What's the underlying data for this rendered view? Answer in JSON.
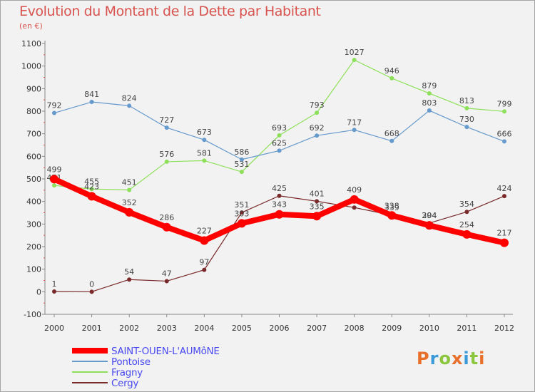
{
  "title": "Evolution du Montant de la Dette par Habitant",
  "unit": "(en €)",
  "logo": {
    "text": "Proxiti",
    "colors": [
      "#e8702a",
      "#3a9ad9",
      "#8cc63f",
      "#e8702a",
      "#3a9ad9",
      "#8cc63f",
      "#e8702a"
    ]
  },
  "chart_data": {
    "type": "line",
    "title": "Evolution du Montant de la Dette par Habitant",
    "ylabel": "(en €)",
    "xlabel": "",
    "categories": [
      "2000",
      "2001",
      "2002",
      "2003",
      "2004",
      "2005",
      "2006",
      "2007",
      "2008",
      "2009",
      "2010",
      "2011",
      "2012"
    ],
    "yticks": [
      -100,
      0,
      100,
      200,
      300,
      400,
      500,
      600,
      700,
      800,
      900,
      1000,
      1100
    ],
    "ylim": [
      -100,
      1100
    ],
    "grid": false,
    "legend": "bottom-left",
    "series": [
      {
        "name": "Cergy",
        "color": "#7a2a2a",
        "width": 1.2,
        "marker": 3,
        "values": [
          1,
          0,
          54,
          47,
          97,
          351,
          425,
          401,
          373,
          339,
          304,
          354,
          424
        ],
        "labels": [
          "1",
          "0",
          "54",
          "47",
          "97",
          "351",
          "425",
          "401",
          "",
          "339",
          "304",
          "354",
          "424"
        ]
      },
      {
        "name": "Fragny",
        "color": "#8ee05a",
        "width": 1.2,
        "marker": 3,
        "values": [
          471,
          455,
          451,
          576,
          581,
          531,
          693,
          793,
          1027,
          946,
          879,
          813,
          799
        ],
        "labels": [
          "471",
          "455",
          "451",
          "576",
          "581",
          "531",
          "693",
          "793",
          "1027",
          "946",
          "879",
          "813",
          "799"
        ]
      },
      {
        "name": "Pontoise",
        "color": "#6699cc",
        "width": 1.2,
        "marker": 3,
        "values": [
          792,
          841,
          824,
          727,
          673,
          586,
          625,
          692,
          717,
          668,
          803,
          730,
          666
        ],
        "labels": [
          "792",
          "841",
          "824",
          "727",
          "673",
          "586",
          "625",
          "692",
          "717",
          "668",
          "803",
          "730",
          "666"
        ]
      },
      {
        "name": "SAINT-OUEN-L'AUMôNE",
        "color": "#ff0000",
        "width": 8,
        "marker": 6,
        "values": [
          499,
          423,
          352,
          286,
          227,
          303,
          343,
          335,
          409,
          338,
          294,
          254,
          217
        ],
        "labels": [
          "499",
          "423",
          "352",
          "286",
          "227",
          "303",
          "343",
          "335",
          "409",
          "338",
          "294",
          "254",
          "217"
        ]
      }
    ]
  },
  "legend_items": [
    {
      "label": "SAINT-OUEN-L'AUMôNE",
      "color": "#ff0000",
      "thickness": 8
    },
    {
      "label": "Pontoise",
      "color": "#6699cc",
      "thickness": 2
    },
    {
      "label": "Fragny",
      "color": "#8ee05a",
      "thickness": 2
    },
    {
      "label": "Cergy",
      "color": "#7a2a2a",
      "thickness": 2
    }
  ]
}
